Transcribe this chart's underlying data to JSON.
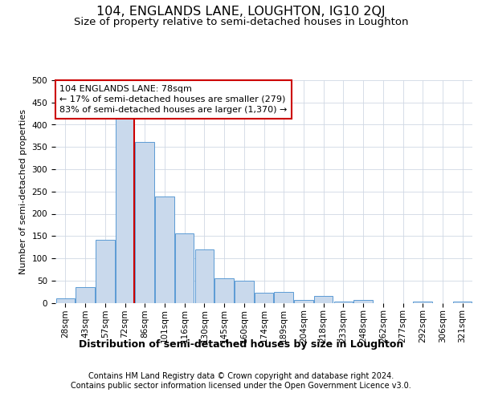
{
  "title": "104, ENGLANDS LANE, LOUGHTON, IG10 2QJ",
  "subtitle": "Size of property relative to semi-detached houses in Loughton",
  "xlabel": "Distribution of semi-detached houses by size in Loughton",
  "ylabel": "Number of semi-detached properties",
  "footer_line1": "Contains HM Land Registry data © Crown copyright and database right 2024.",
  "footer_line2": "Contains public sector information licensed under the Open Government Licence v3.0.",
  "categories": [
    "28sqm",
    "43sqm",
    "57sqm",
    "72sqm",
    "86sqm",
    "101sqm",
    "116sqm",
    "130sqm",
    "145sqm",
    "160sqm",
    "174sqm",
    "189sqm",
    "204sqm",
    "218sqm",
    "233sqm",
    "248sqm",
    "262sqm",
    "277sqm",
    "292sqm",
    "306sqm",
    "321sqm"
  ],
  "values": [
    10,
    35,
    142,
    418,
    362,
    238,
    156,
    119,
    55,
    50,
    23,
    25,
    6,
    15,
    3,
    6,
    0,
    0,
    3,
    0,
    3
  ],
  "bar_color": "#c9d9ec",
  "bar_edge_color": "#5b9bd5",
  "property_line_x": 3.45,
  "property_line_color": "#cc0000",
  "annotation_line1": "104 ENGLANDS LANE: 78sqm",
  "annotation_line2": "← 17% of semi-detached houses are smaller (279)",
  "annotation_line3": "83% of semi-detached houses are larger (1,370) →",
  "annotation_box_color": "#ffffff",
  "annotation_box_edge_color": "#cc0000",
  "ylim": [
    0,
    500
  ],
  "yticks": [
    0,
    50,
    100,
    150,
    200,
    250,
    300,
    350,
    400,
    450,
    500
  ],
  "background_color": "#ffffff",
  "grid_color": "#d0d8e4",
  "title_fontsize": 11.5,
  "subtitle_fontsize": 9.5,
  "xlabel_fontsize": 9,
  "ylabel_fontsize": 8,
  "tick_fontsize": 7.5,
  "annotation_fontsize": 8,
  "footer_fontsize": 7
}
